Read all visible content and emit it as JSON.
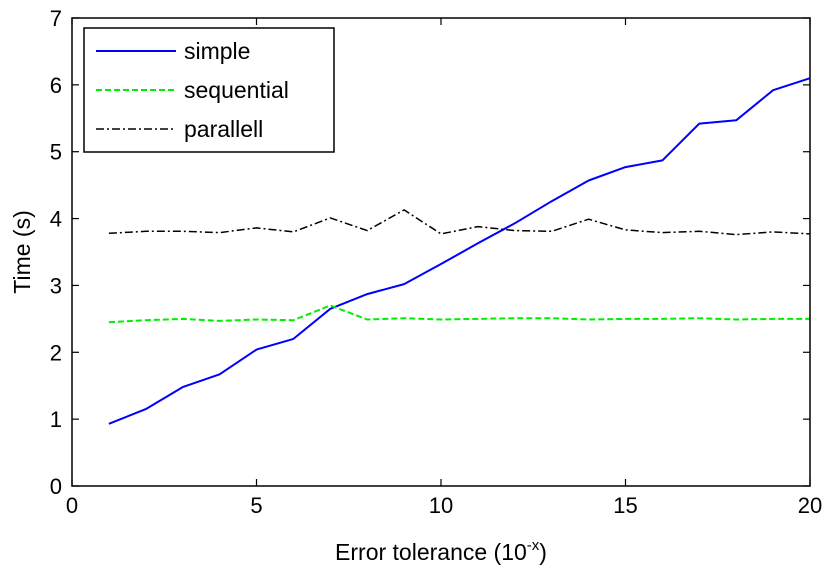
{
  "chart_data": {
    "type": "line",
    "title": "",
    "xlabel": "Error tolerance (10",
    "xlabel_sup": "-x",
    "xlabel_end": ")",
    "ylabel": "Time (s)",
    "xlim": [
      0,
      20
    ],
    "ylim": [
      0,
      7
    ],
    "xticks": [
      0,
      5,
      10,
      15,
      20
    ],
    "yticks": [
      0,
      1,
      2,
      3,
      4,
      5,
      6,
      7
    ],
    "grid": false,
    "legend_position": "top-left",
    "x": [
      1,
      2,
      3,
      4,
      5,
      6,
      7,
      8,
      9,
      10,
      11,
      12,
      13,
      14,
      15,
      16,
      17,
      18,
      19,
      20
    ],
    "series": [
      {
        "name": "simple",
        "color": "#0000ff",
        "style": "solid",
        "values": [
          0.93,
          1.15,
          1.48,
          1.67,
          2.04,
          2.2,
          2.65,
          2.87,
          3.02,
          3.32,
          3.63,
          3.93,
          4.26,
          4.57,
          4.77,
          4.87,
          5.42,
          5.47,
          5.92,
          6.1
        ]
      },
      {
        "name": "sequential",
        "color": "#00ee00",
        "style": "dashed",
        "values": [
          2.45,
          2.48,
          2.5,
          2.47,
          2.49,
          2.48,
          2.7,
          2.49,
          2.51,
          2.49,
          2.5,
          2.51,
          2.51,
          2.49,
          2.5,
          2.5,
          2.51,
          2.49,
          2.5,
          2.5
        ]
      },
      {
        "name": "parallell",
        "color": "#000000",
        "style": "dashdot",
        "values": [
          3.78,
          3.81,
          3.81,
          3.79,
          3.86,
          3.8,
          4.01,
          3.82,
          4.13,
          3.77,
          3.88,
          3.82,
          3.81,
          3.99,
          3.83,
          3.79,
          3.81,
          3.76,
          3.8,
          3.77
        ]
      }
    ]
  }
}
